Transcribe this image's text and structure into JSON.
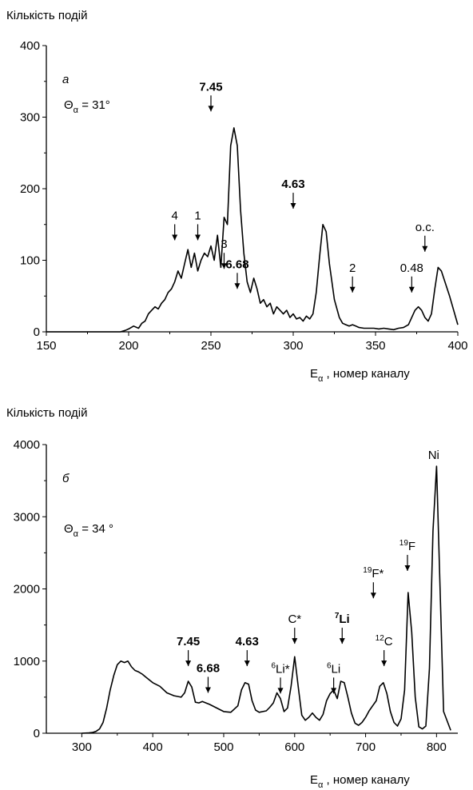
{
  "chart_data": [
    {
      "type": "line",
      "panel_label": "а",
      "angle_label": "Θ",
      "angle_sub": "α",
      "angle_value": " = 31°",
      "ylabel": "Кількість подій",
      "xlabel_main": "E",
      "xlabel_sub": "α",
      "xlabel_tail": " , номер каналу",
      "xlim": [
        150,
        400
      ],
      "ylim": [
        0,
        400
      ],
      "x_ticks": [
        150,
        200,
        250,
        300,
        350,
        400
      ],
      "y_ticks": [
        0,
        100,
        200,
        300,
        400
      ],
      "series": [
        {
          "x": [
            150,
            195,
            198,
            200,
            203,
            206,
            208,
            210,
            212,
            214,
            216,
            218,
            220,
            222,
            224,
            226,
            228,
            230,
            232,
            234,
            236,
            238,
            240,
            242,
            244,
            246,
            248,
            250,
            252,
            254,
            256,
            258,
            260,
            262,
            264,
            266,
            268,
            270,
            272,
            274,
            276,
            278,
            280,
            282,
            284,
            286,
            288,
            290,
            292,
            294,
            296,
            298,
            300,
            302,
            304,
            306,
            308,
            310,
            312,
            314,
            316,
            318,
            320,
            322,
            325,
            328,
            330,
            332,
            334,
            336,
            338,
            340,
            343,
            346,
            349,
            352,
            355,
            358,
            361,
            364,
            367,
            370,
            372,
            374,
            376,
            378,
            380,
            382,
            384,
            386,
            388,
            390,
            395,
            400
          ],
          "y": [
            0,
            0,
            2,
            4,
            8,
            5,
            12,
            15,
            25,
            30,
            35,
            32,
            40,
            45,
            55,
            60,
            70,
            85,
            75,
            95,
            115,
            90,
            110,
            85,
            100,
            110,
            105,
            120,
            100,
            135,
            90,
            160,
            150,
            260,
            285,
            260,
            170,
            110,
            70,
            55,
            75,
            60,
            40,
            45,
            35,
            40,
            25,
            35,
            30,
            25,
            30,
            20,
            25,
            18,
            20,
            15,
            22,
            18,
            25,
            55,
            105,
            150,
            140,
            95,
            45,
            20,
            12,
            10,
            8,
            10,
            8,
            6,
            5,
            5,
            5,
            4,
            5,
            4,
            3,
            5,
            6,
            10,
            20,
            30,
            35,
            30,
            20,
            15,
            25,
            60,
            90,
            85,
            50,
            10
          ]
        }
      ],
      "annotations": [
        {
          "text": "4",
          "x": 228,
          "y_arrow": 128,
          "bold": false
        },
        {
          "text": "1",
          "x": 242,
          "y_arrow": 128,
          "bold": false
        },
        {
          "text": "7.45",
          "x": 250,
          "y_arrow": 308,
          "bold": true
        },
        {
          "text": "3",
          "x": 258,
          "y_arrow": 88,
          "bold": false
        },
        {
          "text": "6.68",
          "x": 266,
          "y_arrow": 60,
          "bold": true
        },
        {
          "text": "4.63",
          "x": 300,
          "y_arrow": 172,
          "bold": true
        },
        {
          "text": "2",
          "x": 336,
          "y_arrow": 55,
          "bold": false
        },
        {
          "text": "0.48",
          "x": 372,
          "y_arrow": 55,
          "bold": false
        },
        {
          "text": "o.c.",
          "x": 380,
          "y_arrow": 112,
          "bold": false
        }
      ]
    },
    {
      "type": "line",
      "panel_label": "б",
      "angle_label": "Θ",
      "angle_sub": "α",
      "angle_value": " = 34 °",
      "ylabel": "Кількість подій",
      "xlabel_main": "E",
      "xlabel_sub": "α",
      "xlabel_tail": " , номер каналу",
      "xlim": [
        250,
        830
      ],
      "ylim": [
        0,
        4000
      ],
      "x_ticks": [
        300,
        400,
        500,
        600,
        700,
        800
      ],
      "y_ticks": [
        0,
        1000,
        2000,
        3000,
        4000
      ],
      "series": [
        {
          "x": [
            300,
            310,
            315,
            320,
            325,
            330,
            335,
            340,
            345,
            350,
            355,
            360,
            365,
            370,
            375,
            380,
            385,
            390,
            395,
            400,
            410,
            420,
            430,
            440,
            445,
            450,
            455,
            460,
            465,
            470,
            480,
            490,
            500,
            510,
            520,
            525,
            530,
            535,
            540,
            545,
            550,
            560,
            565,
            570,
            575,
            580,
            585,
            590,
            595,
            600,
            605,
            610,
            615,
            620,
            625,
            630,
            635,
            640,
            645,
            650,
            655,
            660,
            665,
            670,
            675,
            680,
            685,
            690,
            695,
            700,
            705,
            710,
            715,
            720,
            725,
            730,
            735,
            740,
            745,
            750,
            755,
            760,
            765,
            770,
            775,
            780,
            785,
            790,
            795,
            800,
            805,
            810,
            820
          ],
          "y": [
            0,
            5,
            10,
            25,
            60,
            150,
            350,
            600,
            800,
            950,
            1000,
            980,
            1000,
            920,
            870,
            850,
            820,
            780,
            740,
            700,
            650,
            560,
            520,
            500,
            560,
            720,
            640,
            430,
            420,
            440,
            400,
            350,
            300,
            290,
            380,
            600,
            700,
            680,
            450,
            320,
            290,
            310,
            360,
            420,
            560,
            480,
            300,
            350,
            650,
            1060,
            650,
            250,
            180,
            220,
            280,
            220,
            180,
            260,
            450,
            550,
            600,
            480,
            720,
            700,
            500,
            280,
            140,
            110,
            150,
            220,
            310,
            380,
            450,
            650,
            700,
            550,
            300,
            150,
            100,
            200,
            600,
            1950,
            1400,
            500,
            90,
            60,
            100,
            900,
            2800,
            3700,
            2000,
            300,
            40
          ]
        }
      ],
      "annotations": [
        {
          "text": "7.45",
          "x": 450,
          "y_arrow": 930,
          "bold": true
        },
        {
          "text": "6.68",
          "x": 478,
          "y_arrow": 560,
          "bold": true
        },
        {
          "text": "4.63",
          "x": 533,
          "y_arrow": 930,
          "bold": true
        },
        {
          "text": "Li*",
          "sup": "6",
          "x": 580,
          "y_arrow": 550,
          "bold": false
        },
        {
          "text": "C*",
          "sup": "",
          "x": 600,
          "y_arrow": 1240,
          "bold": false
        },
        {
          "text": "Li",
          "sup": "6",
          "x": 655,
          "y_arrow": 550,
          "bold": false
        },
        {
          "text": "Li",
          "sup": "7",
          "x": 667,
          "y_arrow": 1240,
          "bold": true
        },
        {
          "text": "C",
          "sup": "12",
          "x": 726,
          "y_arrow": 930,
          "bold": false
        },
        {
          "text": "F*",
          "sup": "19",
          "x": 711,
          "y_arrow": 1870,
          "bold": false
        },
        {
          "text": "F",
          "sup": "19",
          "x": 759,
          "y_arrow": 2250,
          "bold": false
        },
        {
          "text": "Ni",
          "sup": "",
          "x": 796,
          "y_arrow": null,
          "bold": false
        }
      ]
    }
  ]
}
